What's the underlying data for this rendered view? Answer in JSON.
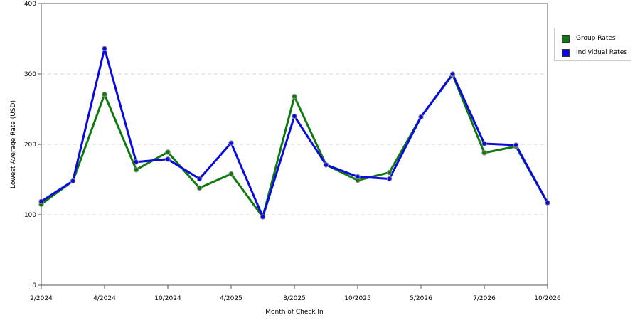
{
  "chart_data": {
    "type": "line",
    "xlabel": "Month of Check In",
    "ylabel": "Lowest Average Rate (USD)",
    "ylim": [
      0,
      400
    ],
    "yticks": [
      0,
      100,
      200,
      300,
      400
    ],
    "grid": true,
    "legend_position": "top-right",
    "x_tick_labels": [
      "2/2024",
      "",
      "4/2024",
      "",
      "10/2024",
      "",
      "4/2025",
      "",
      "8/2025",
      "",
      "10/2025",
      "",
      "5/2026",
      "",
      "7/2026",
      "",
      "10/2026"
    ],
    "series": [
      {
        "name": "Group Rates",
        "color": "#107810",
        "values": [
          115,
          148,
          271,
          164,
          189,
          138,
          158,
          97,
          268,
          171,
          149,
          160,
          239,
          299,
          188,
          197,
          117
        ]
      },
      {
        "name": "Individual Rates",
        "color": "#0a0ae0",
        "values": [
          119,
          148,
          336,
          175,
          179,
          151,
          202,
          97,
          240,
          171,
          154,
          151,
          239,
          300,
          201,
          199,
          117
        ]
      }
    ]
  }
}
